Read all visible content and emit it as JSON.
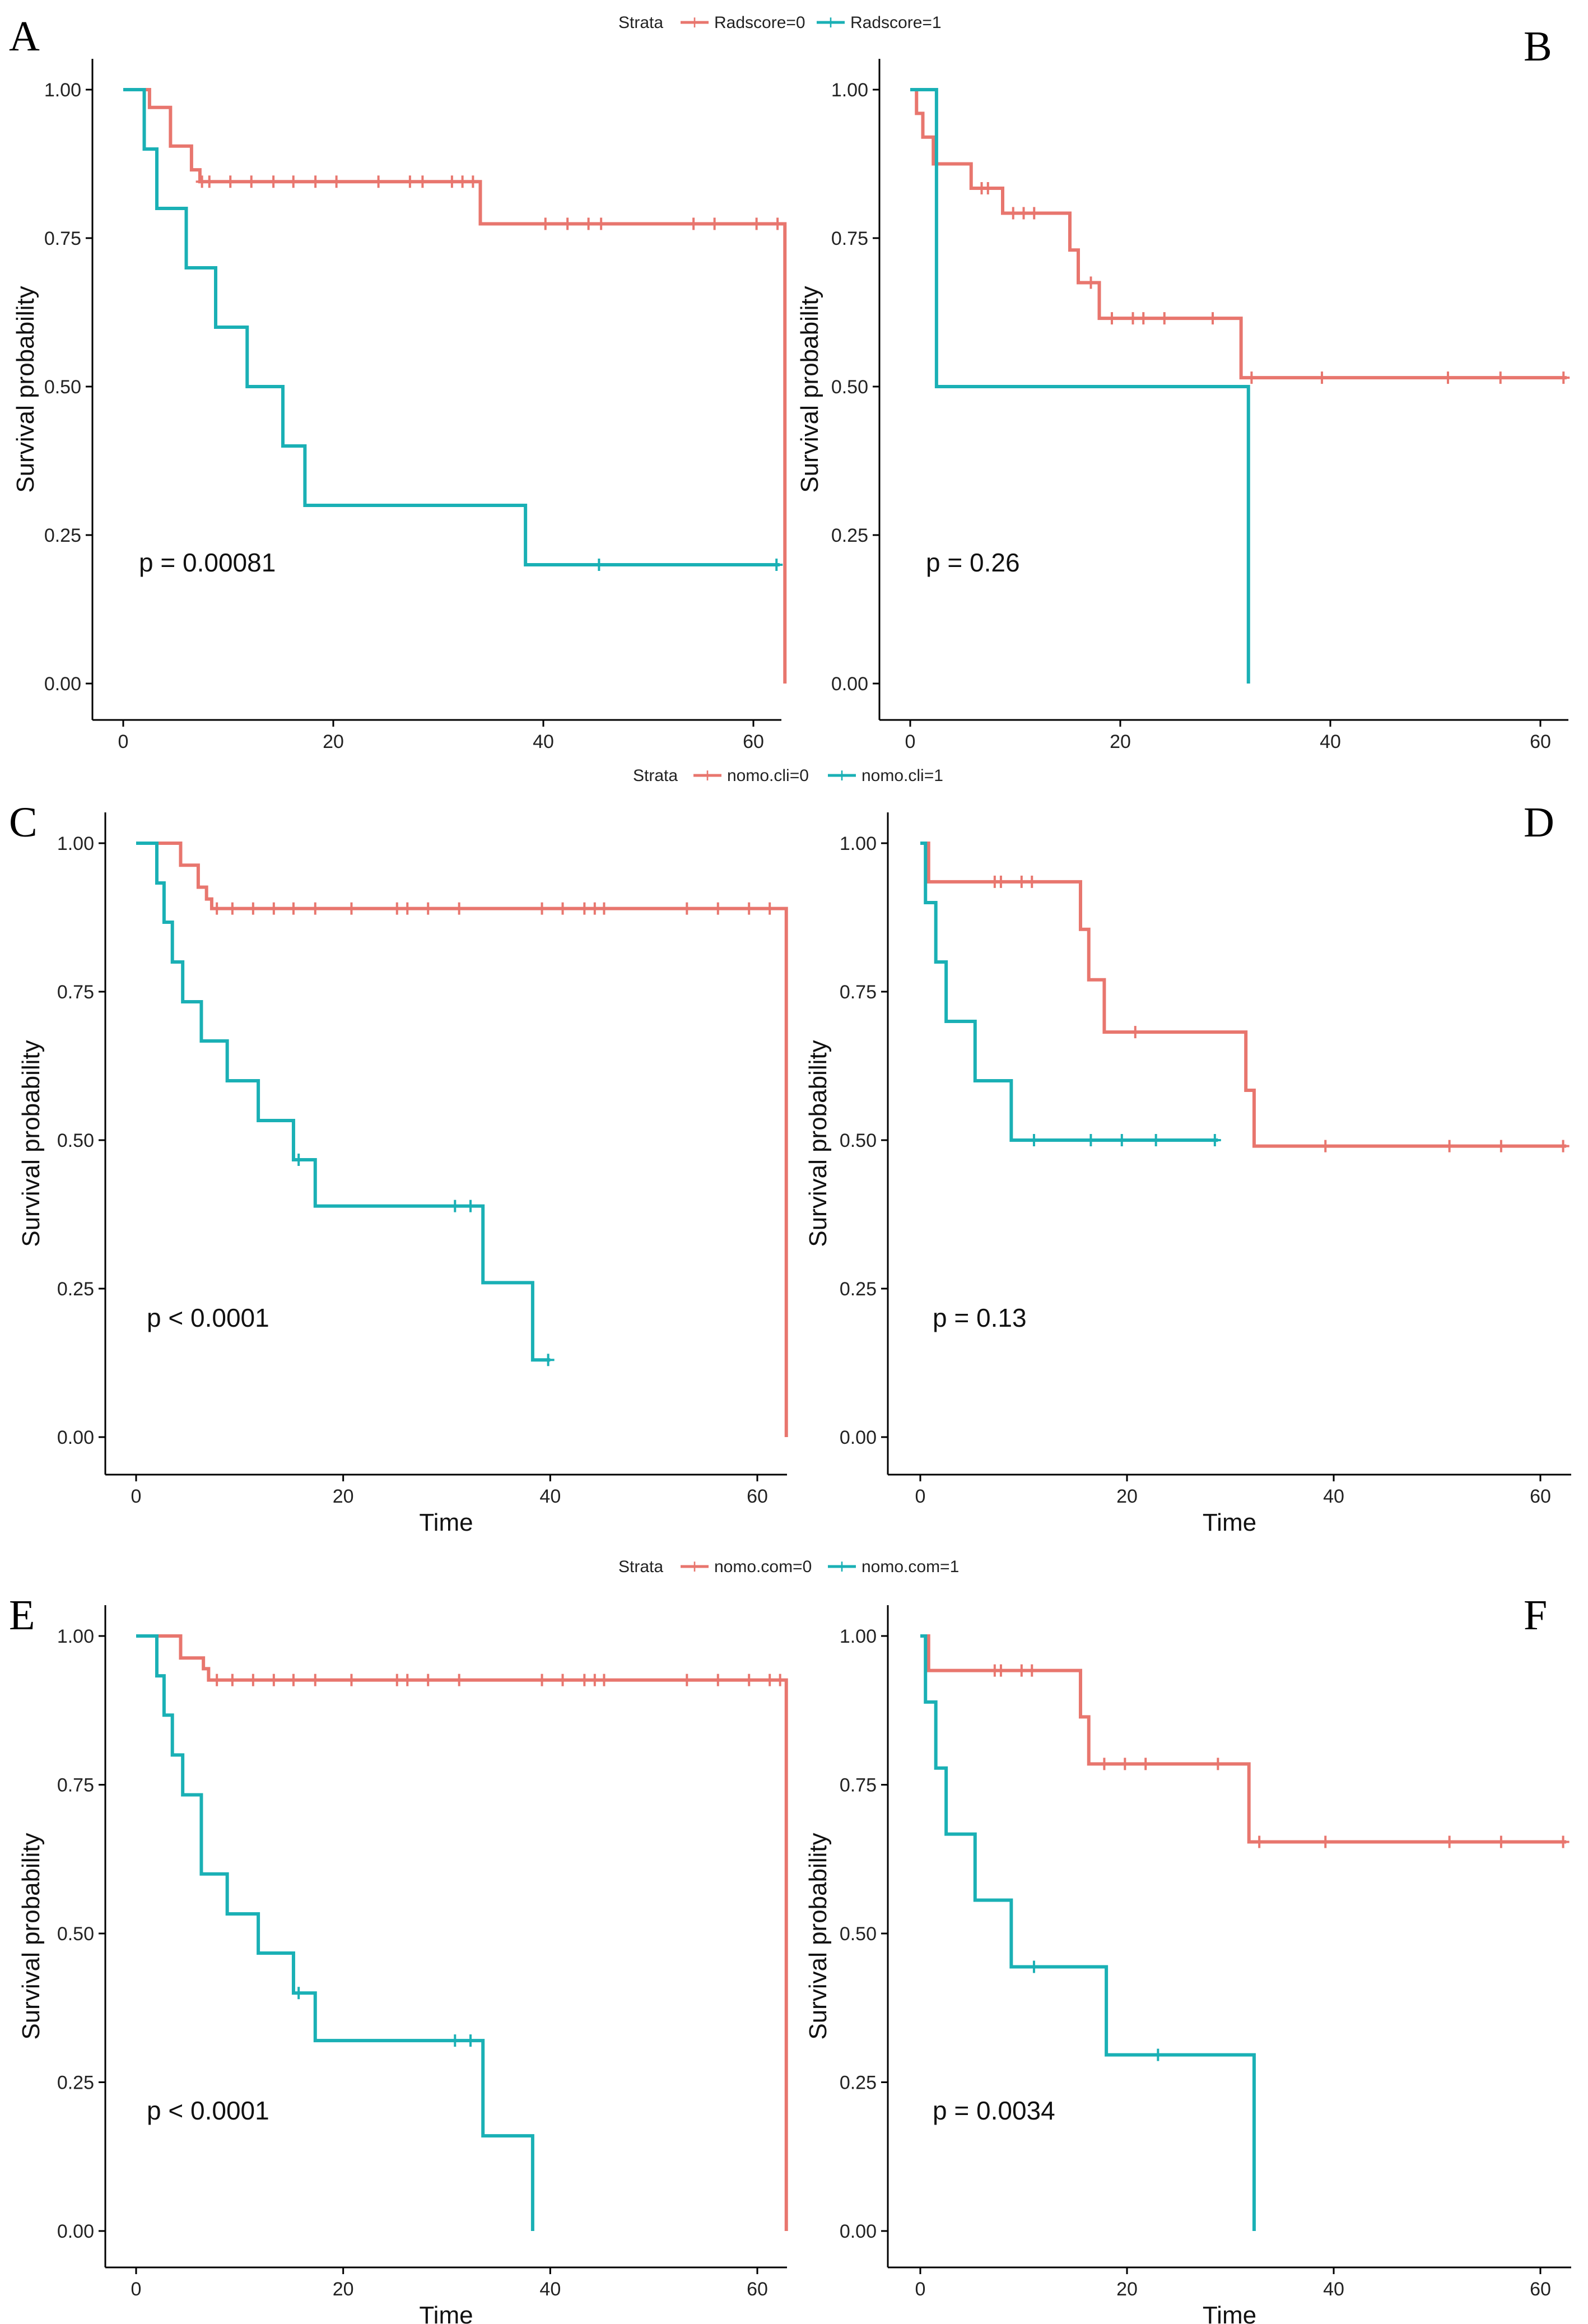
{
  "colors": {
    "group0": "#E8766E",
    "group1": "#1AB0B5"
  },
  "legends": [
    {
      "title": "Strata",
      "labels": [
        "Radscore=0",
        "Radscore=1"
      ]
    },
    {
      "title": "Strata",
      "labels": [
        "nomo.cli=0",
        "nomo.cli=1"
      ]
    },
    {
      "title": "Strata",
      "labels": [
        "nomo.com=0",
        "nomo.com=1"
      ]
    }
  ],
  "chart_data": [
    {
      "type": "line",
      "panel_label": "A",
      "xlabel": "",
      "ylabel": "Survival probability",
      "pvalue_text": "p = 0.00081",
      "xlim": [
        0,
        63
      ],
      "ylim": [
        0,
        1
      ],
      "x_ticks": [
        "0",
        "20",
        "40",
        "60"
      ],
      "y_ticks": [
        "0.00",
        "0.25",
        "0.50",
        "0.75",
        "1.00"
      ],
      "series": [
        {
          "name": "Radscore=0",
          "x": [
            0,
            2.5,
            4.5,
            6.5,
            7.3,
            34,
            63,
            63
          ],
          "values": [
            1.0,
            0.97,
            0.905,
            0.865,
            0.845,
            0.774,
            0.774,
            0.0
          ],
          "censor_x": [
            7.5,
            8.2,
            10.2,
            12.2,
            14.3,
            16.2,
            18.3,
            20.3,
            24.3,
            27.3,
            28.5,
            31.3,
            32.3,
            33.3,
            40.2,
            42.3,
            44.3,
            45.5,
            54.3,
            56.3,
            60.3,
            62.3
          ]
        },
        {
          "name": "Radscore=1",
          "x": [
            0,
            2,
            3.2,
            6,
            8.8,
            11.8,
            15.2,
            17.3,
            38.3,
            62.5
          ],
          "values": [
            1.0,
            0.9,
            0.8,
            0.7,
            0.6,
            0.5,
            0.4,
            0.3,
            0.2,
            0.2
          ],
          "censor_x": [
            45.3,
            62.2
          ]
        }
      ]
    },
    {
      "type": "line",
      "panel_label": "B",
      "xlabel": "",
      "ylabel": "Survival probability",
      "pvalue_text": "p = 0.26",
      "xlim": [
        0,
        63
      ],
      "ylim": [
        0,
        1
      ],
      "x_ticks": [
        "0",
        "20",
        "40",
        "60"
      ],
      "y_ticks": [
        "0.00",
        "0.25",
        "0.50",
        "0.75",
        "1.00"
      ],
      "series": [
        {
          "name": "Radscore=0",
          "x": [
            0,
            0.6,
            1.2,
            2.2,
            5.8,
            8.8,
            15.2,
            16,
            18,
            31.5,
            62.5
          ],
          "values": [
            1.0,
            0.96,
            0.92,
            0.875,
            0.834,
            0.792,
            0.73,
            0.675,
            0.615,
            0.515,
            0.515
          ],
          "censor_x": [
            6.8,
            7.4,
            9.8,
            10.8,
            11.8,
            17.2,
            19.2,
            21.2,
            22.2,
            24.2,
            28.8,
            32.5,
            39.2,
            51.2,
            56.2,
            62.2
          ]
        },
        {
          "name": "Radscore=1",
          "x": [
            0,
            2.5,
            32.2,
            32.2
          ],
          "values": [
            1.0,
            0.5,
            0.5,
            0.0
          ],
          "censor_x": []
        }
      ]
    },
    {
      "type": "line",
      "panel_label": "C",
      "xlabel": "Time",
      "ylabel": "Survival probability",
      "pvalue_text": "p < 0.0001",
      "xlim": [
        0,
        63
      ],
      "ylim": [
        0,
        1
      ],
      "x_ticks": [
        "0",
        "20",
        "40",
        "60"
      ],
      "y_ticks": [
        "0.00",
        "0.25",
        "0.50",
        "0.75",
        "1.00"
      ],
      "series": [
        {
          "name": "nomo.cli=0",
          "x": [
            0,
            4.3,
            6,
            6.8,
            7.3,
            62.8,
            62.8
          ],
          "values": [
            1.0,
            0.963,
            0.926,
            0.906,
            0.89,
            0.89,
            0.0
          ],
          "censor_x": [
            7.8,
            9.3,
            11.3,
            13.3,
            15.2,
            17.3,
            20.8,
            25.2,
            26.2,
            28.2,
            31.2,
            39.2,
            41.2,
            43.3,
            44.3,
            45.2,
            53.2,
            56.2,
            59.2,
            61.2
          ]
        },
        {
          "name": "nomo.cli=1",
          "x": [
            0,
            2,
            2.7,
            3.5,
            4.5,
            6.3,
            8.8,
            11.8,
            15.2,
            17.3,
            33.5,
            38.3,
            40
          ],
          "values": [
            1.0,
            0.933,
            0.867,
            0.8,
            0.733,
            0.667,
            0.6,
            0.533,
            0.467,
            0.389,
            0.26,
            0.13,
            0.13
          ],
          "censor_x": [
            15.7,
            30.8,
            32.3,
            39.8
          ]
        }
      ]
    },
    {
      "type": "line",
      "panel_label": "D",
      "xlabel": "Time",
      "ylabel": "Survival probability",
      "pvalue_text": "p = 0.13",
      "xlim": [
        0,
        63
      ],
      "ylim": [
        0,
        1
      ],
      "x_ticks": [
        "0",
        "20",
        "40",
        "60"
      ],
      "y_ticks": [
        "0.00",
        "0.25",
        "0.50",
        "0.75",
        "1.00"
      ],
      "series": [
        {
          "name": "nomo.cli=0",
          "x": [
            0,
            0.8,
            15.5,
            16.3,
            17.8,
            31.5,
            32.3,
            62.5
          ],
          "values": [
            1.0,
            0.935,
            0.855,
            0.77,
            0.682,
            0.584,
            0.49,
            0.49
          ],
          "censor_x": [
            7.2,
            7.8,
            9.8,
            10.8,
            20.8,
            39.2,
            51.2,
            56.2,
            62.2
          ]
        },
        {
          "name": "nomo.cli=1",
          "x": [
            0,
            0.5,
            1.5,
            2.5,
            5.3,
            8.8,
            28.8
          ],
          "values": [
            1.0,
            0.9,
            0.8,
            0.7,
            0.6,
            0.5,
            0.5
          ],
          "censor_x": [
            11,
            16.5,
            19.5,
            22.8,
            28.5
          ]
        }
      ]
    },
    {
      "type": "line",
      "panel_label": "E",
      "xlabel": "Time",
      "ylabel": "Survival probability",
      "pvalue_text": "p < 0.0001",
      "xlim": [
        0,
        63
      ],
      "ylim": [
        0,
        1
      ],
      "x_ticks": [
        "0",
        "20",
        "40",
        "60"
      ],
      "y_ticks": [
        "0.00",
        "0.25",
        "0.50",
        "0.75",
        "1.00"
      ],
      "series": [
        {
          "name": "nomo.com=0",
          "x": [
            0,
            4.3,
            6.5,
            7,
            62.8,
            62.8
          ],
          "values": [
            1.0,
            0.963,
            0.945,
            0.926,
            0.926,
            0.0
          ],
          "censor_x": [
            7.8,
            9.3,
            11.3,
            13.3,
            15.2,
            17.3,
            20.8,
            25.2,
            26.2,
            28.2,
            31.2,
            39.2,
            41.2,
            43.3,
            44.3,
            45.2,
            53.2,
            56.2,
            59.2,
            61.2,
            62.2
          ]
        },
        {
          "name": "nomo.com=1",
          "x": [
            0,
            2,
            2.7,
            3.5,
            4.5,
            6.3,
            8.8,
            11.8,
            15.2,
            17.3,
            33.5,
            38.3,
            38.3
          ],
          "values": [
            1.0,
            0.933,
            0.867,
            0.8,
            0.733,
            0.6,
            0.533,
            0.467,
            0.4,
            0.32,
            0.16,
            0.16,
            0.0
          ],
          "censor_x": [
            15.7,
            30.8,
            32.3
          ]
        }
      ]
    },
    {
      "type": "line",
      "panel_label": "F",
      "xlabel": "Time",
      "ylabel": "Survival probability",
      "pvalue_text": "p = 0.0034",
      "xlim": [
        0,
        63
      ],
      "ylim": [
        0,
        1
      ],
      "x_ticks": [
        "0",
        "20",
        "40",
        "60"
      ],
      "y_ticks": [
        "0.00",
        "0.25",
        "0.50",
        "0.75",
        "1.00"
      ],
      "series": [
        {
          "name": "nomo.com=0",
          "x": [
            0,
            0.8,
            15.5,
            16.3,
            31.8,
            62.5
          ],
          "values": [
            1.0,
            0.942,
            0.864,
            0.785,
            0.654,
            0.654
          ],
          "censor_x": [
            7.2,
            7.8,
            9.8,
            10.8,
            17.8,
            19.8,
            21.8,
            28.8,
            32.8,
            39.2,
            51.2,
            56.2,
            62.2
          ]
        },
        {
          "name": "nomo.com=1",
          "x": [
            0,
            0.5,
            1.5,
            2.5,
            5.3,
            8.8,
            18,
            32.3,
            32.3
          ],
          "values": [
            1.0,
            0.889,
            0.778,
            0.667,
            0.556,
            0.444,
            0.296,
            0.296,
            0.0
          ],
          "censor_x": [
            11,
            23
          ]
        }
      ]
    }
  ]
}
